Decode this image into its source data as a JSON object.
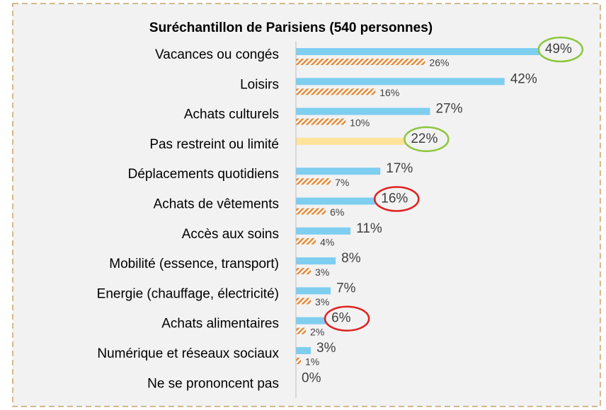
{
  "chart_data": {
    "type": "hbar",
    "title": "Suréchantillon de Parisiens (540 personnes)",
    "categories": [
      "Vacances ou congés",
      "Loisirs",
      "Achats culturels",
      "Pas restreint ou limité",
      "Déplacements quotidiens",
      "Achats de vêtements",
      "Accès aux soins",
      "Mobilité (essence, transport)",
      "Energie (chauffage, électricité)",
      "Achats alimentaires",
      "Numérique et réseaux sociaux",
      "Ne se prononcent pas"
    ],
    "series": [
      {
        "color": "#7ecef0",
        "colors": [
          "#7ecef0",
          "#7ecef0",
          "#7ecef0",
          "#ffe39b",
          "#7ecef0",
          "#7ecef0",
          "#7ecef0",
          "#7ecef0",
          "#7ecef0",
          "#7ecef0",
          "#7ecef0",
          "#7ecef0"
        ],
        "values": [
          49,
          42,
          27,
          22,
          17,
          16,
          11,
          8,
          7,
          6,
          3,
          0
        ],
        "value_labels": [
          "49%",
          "42%",
          "27%",
          "22%",
          "17%",
          "16%",
          "11%",
          "8%",
          "7%",
          "6%",
          "3%",
          "0%"
        ]
      },
      {
        "color": "#e38b3a",
        "pattern": "hatch",
        "values": [
          26,
          16,
          10,
          null,
          7,
          6,
          4,
          3,
          3,
          2,
          1,
          null
        ],
        "value_labels": [
          "26%",
          "16%",
          "10%",
          null,
          "7%",
          "6%",
          "4%",
          "3%",
          "3%",
          "2%",
          "1%",
          null
        ]
      }
    ],
    "circled": [
      {
        "index": 0,
        "color": "#8dc63f"
      },
      {
        "index": 3,
        "color": "#8dc63f"
      },
      {
        "index": 5,
        "color": "#e02020"
      },
      {
        "index": 9,
        "color": "#e02020"
      }
    ],
    "xlim": [
      0,
      60
    ]
  }
}
